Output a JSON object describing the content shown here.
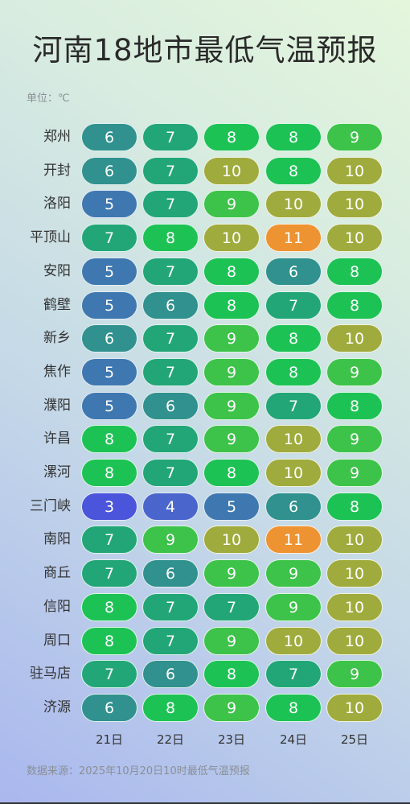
{
  "title": "河南18地市最低气温预报",
  "unit_text": "单位：℃",
  "source_text": "数据来源：2025年10月20日10时最低气温预报",
  "colors": {
    "3": "#4a55dc",
    "4": "#4a66cc",
    "5": "#3f78b0",
    "6": "#30918e",
    "7": "#22a678",
    "8": "#1dc255",
    "9": "#3dc34a",
    "10": "#9fab3c",
    "11": "#ee9331"
  },
  "chart_data": {
    "type": "table",
    "title": "河南18地市最低气温预报",
    "unit": "℃",
    "columns": [
      "21日",
      "22日",
      "23日",
      "24日",
      "25日"
    ],
    "rows": [
      {
        "city": "郑州",
        "values": [
          6,
          7,
          8,
          8,
          9
        ]
      },
      {
        "city": "开封",
        "values": [
          6,
          7,
          10,
          8,
          10
        ]
      },
      {
        "city": "洛阳",
        "values": [
          5,
          7,
          9,
          10,
          10
        ]
      },
      {
        "city": "平顶山",
        "values": [
          7,
          8,
          10,
          11,
          10
        ]
      },
      {
        "city": "安阳",
        "values": [
          5,
          7,
          8,
          6,
          8
        ]
      },
      {
        "city": "鹤壁",
        "values": [
          5,
          6,
          8,
          7,
          8
        ]
      },
      {
        "city": "新乡",
        "values": [
          6,
          7,
          9,
          8,
          10
        ]
      },
      {
        "city": "焦作",
        "values": [
          5,
          7,
          9,
          8,
          9
        ]
      },
      {
        "city": "濮阳",
        "values": [
          5,
          6,
          9,
          7,
          8
        ]
      },
      {
        "city": "许昌",
        "values": [
          8,
          7,
          9,
          10,
          9
        ]
      },
      {
        "city": "漯河",
        "values": [
          8,
          7,
          8,
          10,
          9
        ]
      },
      {
        "city": "三门峡",
        "values": [
          3,
          4,
          5,
          6,
          8
        ]
      },
      {
        "city": "南阳",
        "values": [
          7,
          9,
          10,
          11,
          10
        ]
      },
      {
        "city": "商丘",
        "values": [
          7,
          6,
          9,
          9,
          10
        ]
      },
      {
        "city": "信阳",
        "values": [
          8,
          7,
          7,
          9,
          10
        ]
      },
      {
        "city": "周口",
        "values": [
          8,
          7,
          9,
          10,
          10
        ]
      },
      {
        "city": "驻马店",
        "values": [
          7,
          6,
          8,
          7,
          9
        ]
      },
      {
        "city": "济源",
        "values": [
          6,
          8,
          9,
          8,
          10
        ]
      }
    ]
  }
}
